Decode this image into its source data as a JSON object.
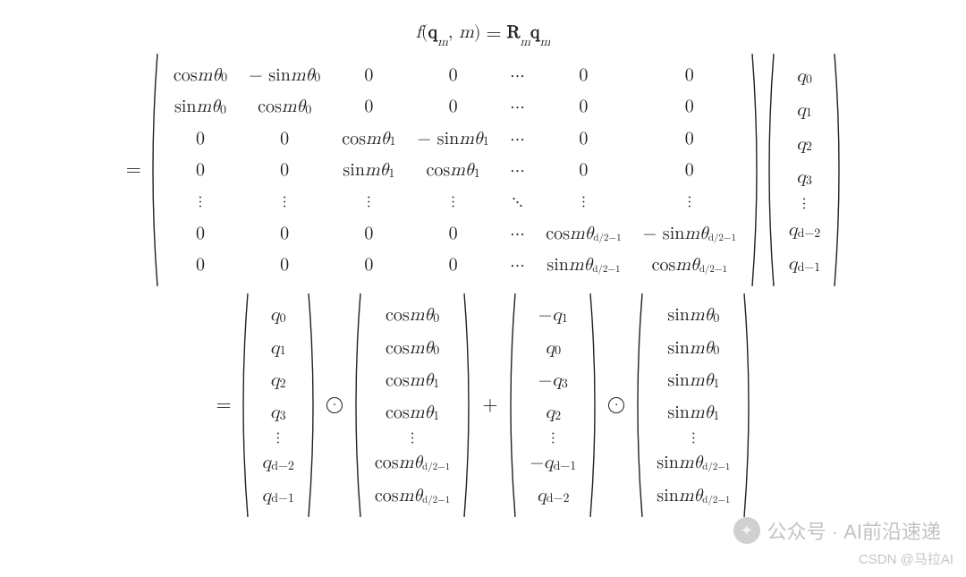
{
  "header": {
    "lhs": "f(\\mathbf{q}_m, m)",
    "rhs": "\\mathbf{R}_m \\mathbf{q}_m"
  },
  "line1": {
    "prefix": "=",
    "rotation_matrix": {
      "type": "matrix",
      "rows": 7,
      "cols": 7,
      "font_size": 20,
      "paren_color": "#222222",
      "cells": [
        [
          "cos mθ₀",
          "− sin mθ₀",
          "0",
          "0",
          "⋯",
          "0",
          "0"
        ],
        [
          "sin mθ₀",
          "cos mθ₀",
          "0",
          "0",
          "⋯",
          "0",
          "0"
        ],
        [
          "0",
          "0",
          "cos mθ₁",
          "− sin mθ₁",
          "⋯",
          "0",
          "0"
        ],
        [
          "0",
          "0",
          "sin mθ₁",
          "cos mθ₁",
          "⋯",
          "0",
          "0"
        ],
        [
          "⋮",
          "⋮",
          "⋮",
          "⋮",
          "⋱",
          "⋮",
          "⋮"
        ],
        [
          "0",
          "0",
          "0",
          "0",
          "⋯",
          "cos mθ_{d/2−1}",
          "− sin mθ_{d/2−1}"
        ],
        [
          "0",
          "0",
          "0",
          "0",
          "⋯",
          "sin mθ_{d/2−1}",
          "cos mθ_{d/2−1}"
        ]
      ]
    },
    "q_vector": {
      "type": "column_vector",
      "entries": [
        "q₀",
        "q₁",
        "q₂",
        "q₃",
        "⋮",
        "q_{d−2}",
        "q_{d−1}"
      ]
    }
  },
  "line2": {
    "prefix": "=",
    "terms": [
      {
        "type": "column_vector",
        "entries": [
          "q₀",
          "q₁",
          "q₂",
          "q₃",
          "⋮",
          "q_{d−2}",
          "q_{d−1}"
        ]
      },
      {
        "op": "⊙"
      },
      {
        "type": "column_vector",
        "entries": [
          "cos mθ₀",
          "cos mθ₀",
          "cos mθ₁",
          "cos mθ₁",
          "⋮",
          "cos mθ_{d/2−1}",
          "cos mθ_{d/2−1}"
        ]
      },
      {
        "op": "+"
      },
      {
        "type": "column_vector",
        "entries": [
          "−q₁",
          "q₀",
          "−q₃",
          "q₂",
          "⋮",
          "−q_{d−1}",
          "q_{d−2}"
        ]
      },
      {
        "op": "⊙"
      },
      {
        "type": "column_vector",
        "entries": [
          "sin mθ₀",
          "sin mθ₀",
          "sin mθ₁",
          "sin mθ₁",
          "⋮",
          "sin mθ_{d/2−1}",
          "sin mθ_{d/2−1}"
        ]
      }
    ]
  },
  "style": {
    "background_color": "#ffffff",
    "text_color": "#222222",
    "font_family": "Latin Modern Math, Cambria Math, STIX, Times New Roman, serif",
    "base_font_size": 20,
    "subscript_scale": 0.7
  },
  "watermarks": {
    "wechat": {
      "label": "公众号 · AI前沿速递",
      "icon_glyph": "✦",
      "color": "rgba(120,120,120,0.45)"
    },
    "csdn": {
      "label": "CSDN @马拉AI",
      "color": "rgba(150,150,150,0.55)"
    }
  }
}
